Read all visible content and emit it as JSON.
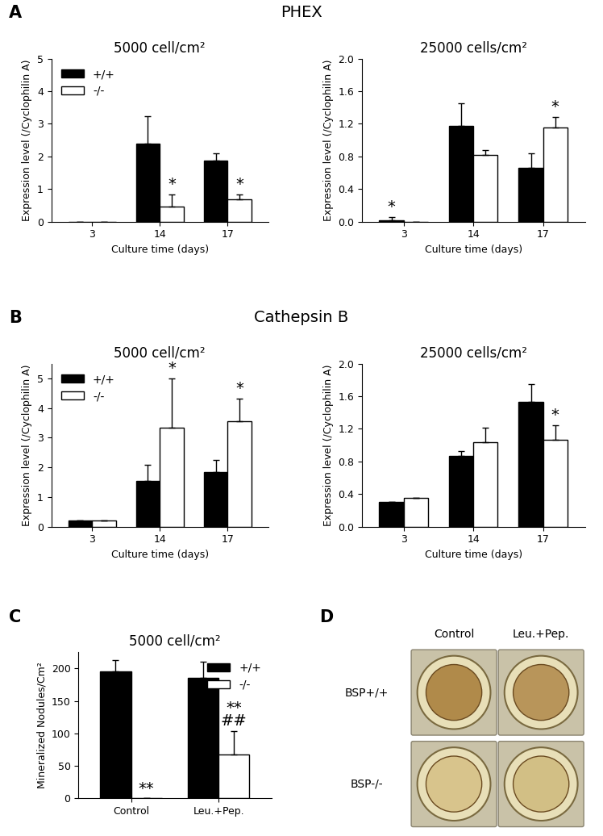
{
  "chart_data": [
    {
      "type": "bar",
      "title": "5000 cell/cm²",
      "xlabel": "Culture time (days)",
      "ylabel": "Expression level (/Cyclophilin A)",
      "categories": [
        "3",
        "14",
        "17"
      ],
      "series": [
        {
          "name": "+/+",
          "color": "#000000",
          "values": [
            0,
            2.38,
            1.88
          ],
          "errors": [
            0,
            0.85,
            0.2
          ],
          "annotations": [
            null,
            null,
            null
          ]
        },
        {
          "name": "-/-",
          "color": "#ffffff",
          "values": [
            0,
            0.45,
            0.68
          ],
          "errors": [
            0,
            0.38,
            0.15
          ],
          "annotations": [
            null,
            "*",
            "*"
          ]
        }
      ],
      "ylim": [
        0,
        5
      ],
      "yticks": [
        0,
        1,
        2,
        3,
        4,
        5
      ],
      "legend": "upper left"
    },
    {
      "type": "bar",
      "title": "25000 cells/cm²",
      "xlabel": "Culture time (days)",
      "ylabel": "Expression level (/Cyclophilin A)",
      "categories": [
        "3",
        "14",
        "17"
      ],
      "series": [
        {
          "color": "#000000",
          "values": [
            0.02,
            1.17,
            0.66
          ],
          "errors": [
            0.03,
            0.28,
            0.18
          ],
          "annotations": [
            "*",
            null,
            null
          ]
        },
        {
          "color": "#ffffff",
          "values": [
            0,
            0.82,
            1.15
          ],
          "errors": [
            0,
            0.06,
            0.13
          ],
          "annotations": [
            null,
            null,
            "*"
          ]
        }
      ],
      "ylim": [
        0.0,
        2.0
      ],
      "yticks": [
        0.0,
        0.4,
        0.8,
        1.2,
        1.6,
        2.0
      ]
    },
    {
      "type": "bar",
      "title": "5000 cell/cm²",
      "xlabel": "Culture time (days)",
      "ylabel": "Expression level (/Cyclophilin A)",
      "categories": [
        "3",
        "14",
        "17"
      ],
      "series": [
        {
          "name": "+/+",
          "color": "#000000",
          "values": [
            0.2,
            1.55,
            1.83
          ],
          "errors": [
            0.02,
            0.55,
            0.42
          ],
          "annotations": [
            null,
            null,
            null
          ]
        },
        {
          "name": "-/-",
          "color": "#ffffff",
          "values": [
            0.2,
            3.35,
            3.57
          ],
          "errors": [
            0.02,
            1.65,
            0.75
          ],
          "annotations": [
            null,
            "*",
            "*"
          ]
        }
      ],
      "ylim": [
        0,
        5.5
      ],
      "yticks": [
        0,
        1,
        2,
        3,
        4,
        5
      ],
      "legend": "upper left"
    },
    {
      "type": "bar",
      "title": "25000 cells/cm²",
      "xlabel": "Culture time (days)",
      "ylabel": "Expression level (/Cyclophilin A)",
      "categories": [
        "3",
        "14",
        "17"
      ],
      "series": [
        {
          "color": "#000000",
          "values": [
            0.3,
            0.87,
            1.53
          ],
          "errors": [
            0,
            0.06,
            0.22
          ],
          "annotations": [
            null,
            null,
            null
          ]
        },
        {
          "color": "#ffffff",
          "values": [
            0.35,
            1.04,
            1.07
          ],
          "errors": [
            0,
            0.17,
            0.17
          ],
          "annotations": [
            null,
            null,
            "*"
          ]
        }
      ],
      "ylim": [
        0.0,
        2.0
      ],
      "yticks": [
        0.0,
        0.4,
        0.8,
        1.2,
        1.6,
        2.0
      ]
    },
    {
      "type": "bar",
      "title": "5000 cell/cm²",
      "ylabel": "Mineralized Nodules/Cm²",
      "categories": [
        "Control",
        "Leu.+Pep."
      ],
      "series": [
        {
          "name": "+/+",
          "color": "#000000",
          "values": [
            195,
            185
          ],
          "errors": [
            18,
            25
          ],
          "annotations": [
            null,
            null
          ]
        },
        {
          "name": "-/-",
          "color": "#ffffff",
          "values": [
            0,
            67
          ],
          "errors": [
            0,
            37
          ],
          "annotations": [
            "**",
            "**\n##"
          ]
        }
      ],
      "ylim": [
        0,
        225
      ],
      "yticks": [
        0,
        50,
        100,
        150,
        200
      ],
      "legend": "upper right"
    }
  ],
  "headings": [
    {
      "panel": "A",
      "title": "PHEX"
    },
    {
      "panel": "B",
      "title": "Cathepsin B"
    },
    {
      "panel": "C"
    }
  ],
  "photo_panel": {
    "panel": "D",
    "columns": [
      "Control",
      "Leu.+Pep."
    ],
    "rows": [
      "BSP+/+",
      "BSP-/-"
    ]
  }
}
